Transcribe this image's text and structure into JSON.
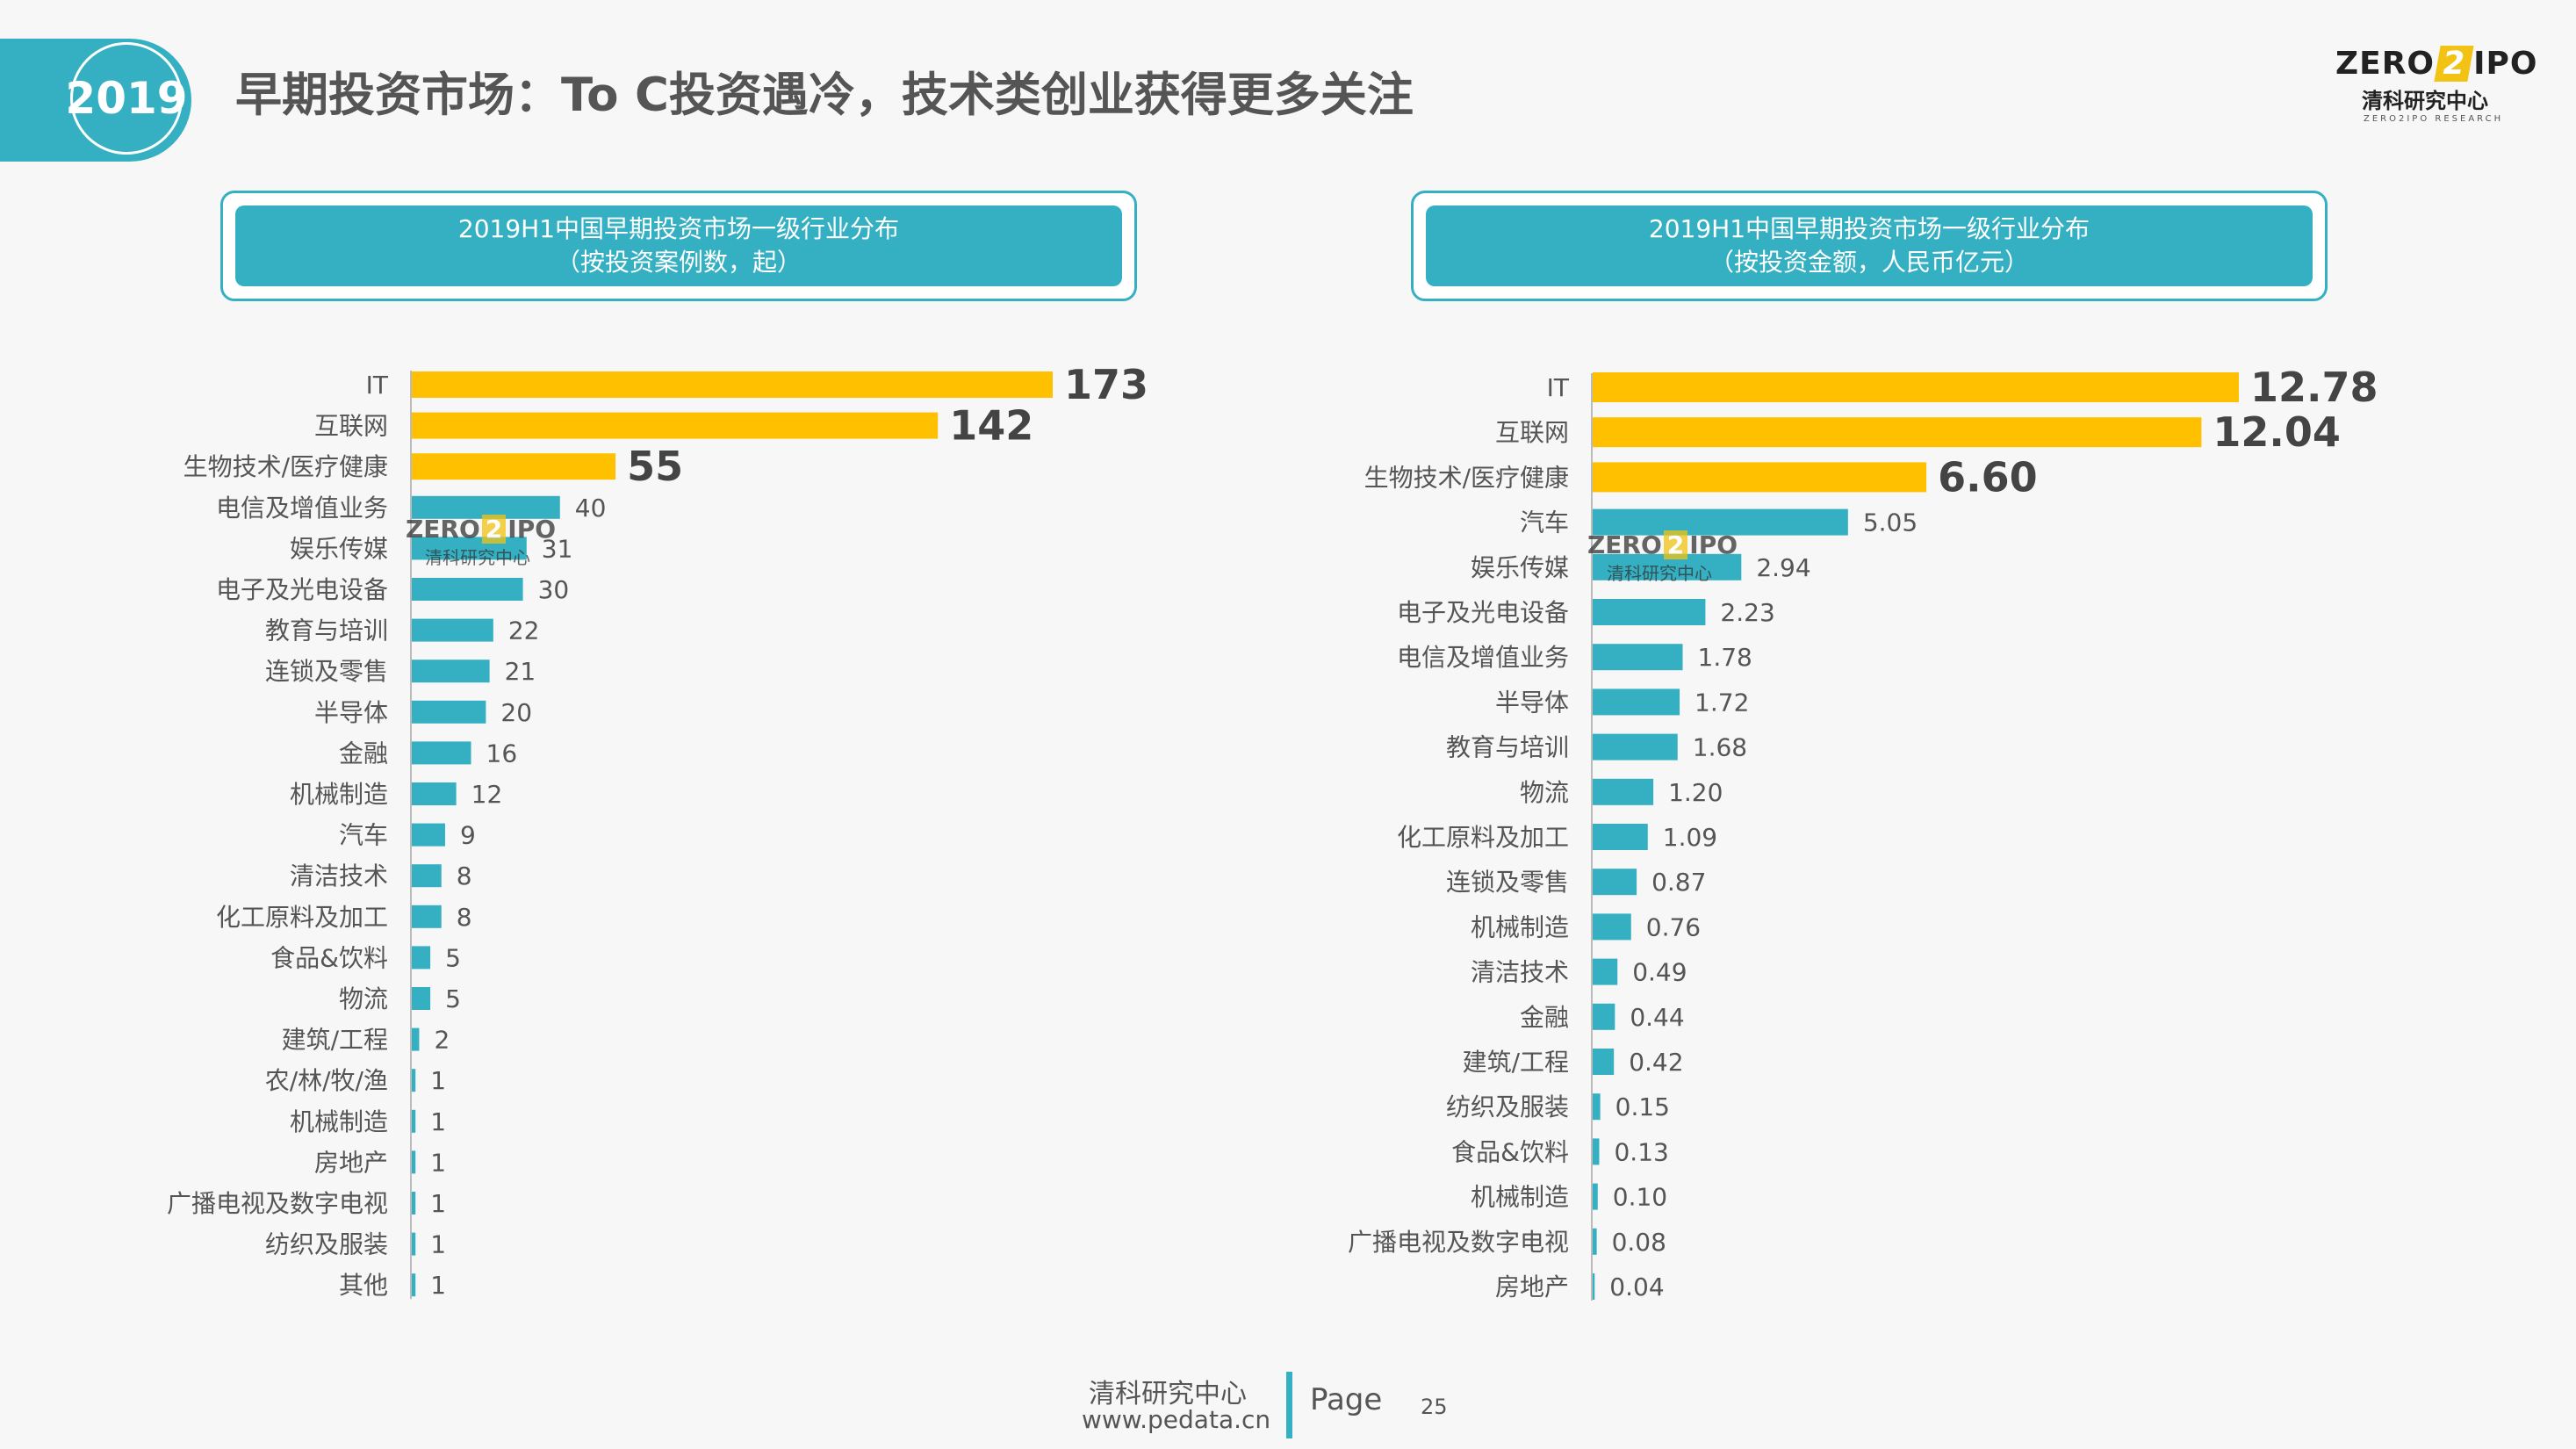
{
  "header": {
    "year": "2019",
    "title": "早期投资市场：To C投资遇冷，技术类创业获得更多关注"
  },
  "logo": {
    "line1_a": "ZERO",
    "line1_b": "2",
    "line1_c": "IPO",
    "line2": "清科研究中心",
    "line3": "ZERO2IPO RESEARCH"
  },
  "watermark": {
    "line1_a": "ZERO",
    "line1_b": "2",
    "line1_c": "IPO",
    "line2": "清科研究中心"
  },
  "colors": {
    "accent": "#35b0c2",
    "highlight": "#ffc000",
    "text": "#555555"
  },
  "chart_data": [
    {
      "type": "bar",
      "orientation": "horizontal",
      "title_line1": "2019H1中国早期投资市场一级行业分布",
      "title_line2": "（按投资案例数，起）",
      "highlight_top": 3,
      "categories": [
        "IT",
        "互联网",
        "生物技术/医疗健康",
        "电信及增值业务",
        "娱乐传媒",
        "电子及光电设备",
        "教育与培训",
        "连锁及零售",
        "半导体",
        "金融",
        "机械制造",
        "汽车",
        "清洁技术",
        "化工原料及加工",
        "食品&饮料",
        "物流",
        "建筑/工程",
        "农/林/牧/渔",
        "机械制造",
        "房地产",
        "广播电视及数字电视",
        "纺织及服装",
        "其他"
      ],
      "values": [
        173,
        142,
        55,
        40,
        31,
        30,
        22,
        21,
        20,
        16,
        12,
        9,
        8,
        8,
        5,
        5,
        2,
        1,
        1,
        1,
        1,
        1,
        1
      ],
      "labels": [
        "173",
        "142",
        "55",
        "40",
        "31",
        "30",
        "22",
        "21",
        "20",
        "16",
        "12",
        "9",
        "8",
        "8",
        "5",
        "5",
        "2",
        "1",
        "1",
        "1",
        "1",
        "1",
        "1"
      ],
      "xlim": [
        0,
        173
      ]
    },
    {
      "type": "bar",
      "orientation": "horizontal",
      "title_line1": "2019H1中国早期投资市场一级行业分布",
      "title_line2": "（按投资金额，人民币亿元）",
      "highlight_top": 3,
      "categories": [
        "IT",
        "互联网",
        "生物技术/医疗健康",
        "汽车",
        "娱乐传媒",
        "电子及光电设备",
        "电信及增值业务",
        "半导体",
        "教育与培训",
        "物流",
        "化工原料及加工",
        "连锁及零售",
        "机械制造",
        "清洁技术",
        "金融",
        "建筑/工程",
        "纺织及服装",
        "食品&饮料",
        "机械制造",
        "广播电视及数字电视",
        "房地产"
      ],
      "values": [
        12.78,
        12.04,
        6.6,
        5.05,
        2.94,
        2.23,
        1.78,
        1.72,
        1.68,
        1.2,
        1.09,
        0.87,
        0.76,
        0.49,
        0.44,
        0.42,
        0.15,
        0.13,
        0.1,
        0.08,
        0.04
      ],
      "labels": [
        "12.78",
        "12.04",
        "6.60",
        "5.05",
        "2.94",
        "2.23",
        "1.78",
        "1.72",
        "1.68",
        "1.20",
        "1.09",
        "0.87",
        "0.76",
        "0.49",
        "0.44",
        "0.42",
        "0.15",
        "0.13",
        "0.10",
        "0.08",
        "0.04"
      ],
      "xlim": [
        0,
        12.78
      ]
    }
  ],
  "footer": {
    "name": "清科研究中心",
    "url": "www.pedata.cn",
    "page_label": "Page",
    "page_number": "25"
  }
}
